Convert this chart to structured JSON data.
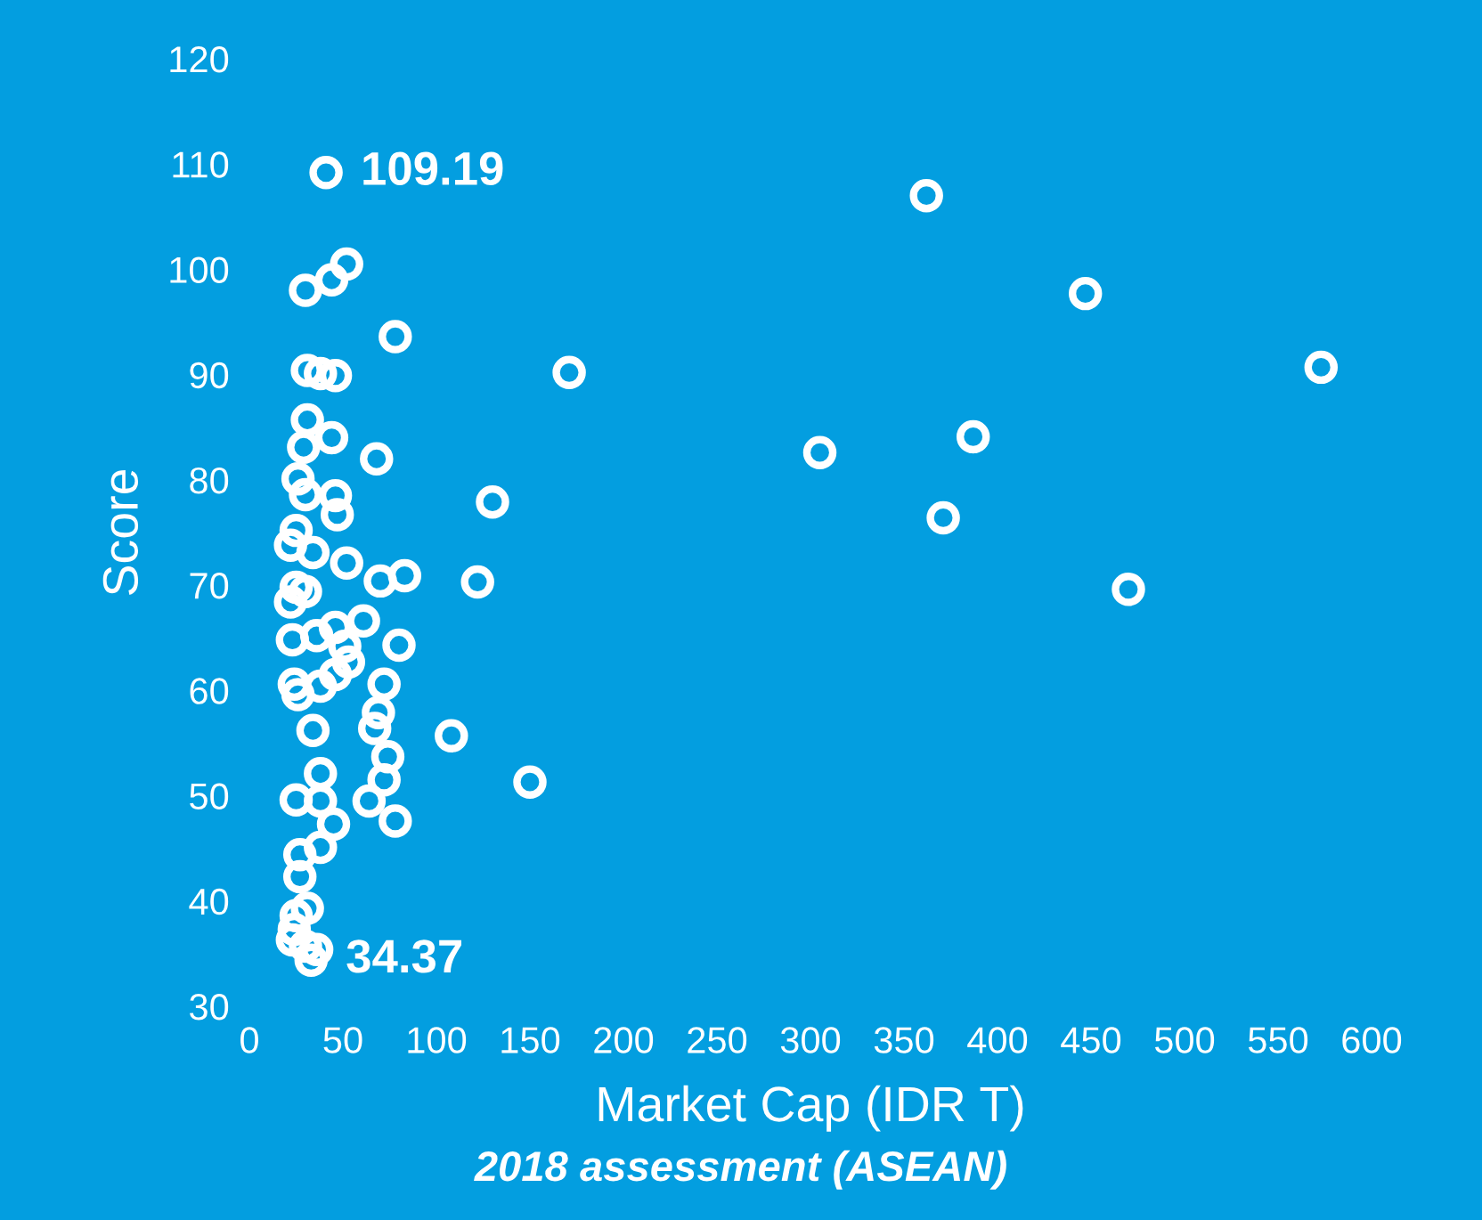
{
  "chart_data": {
    "type": "scatter",
    "xlabel": "Market Cap (IDR T)",
    "ylabel": "Score",
    "annotations": [
      "2018 assessment (ASEAN)"
    ],
    "xlim": [
      0,
      600
    ],
    "xticks": [
      0,
      50,
      100,
      150,
      200,
      250,
      300,
      350,
      400,
      450,
      500,
      550,
      600
    ],
    "ylim": [
      30,
      120
    ],
    "yticks": [
      30,
      40,
      50,
      60,
      70,
      80,
      90,
      100,
      110,
      120
    ],
    "grid": false,
    "marker": "circle",
    "series": [
      {
        "color": "#ffffff",
        "x": [
          362,
          447,
          573,
          171,
          387,
          305,
          371,
          130,
          470,
          122,
          150,
          108,
          41,
          52,
          44,
          30,
          78,
          31,
          38,
          46,
          31,
          44,
          29,
          68,
          26,
          30,
          46,
          47,
          25,
          22,
          34,
          52,
          70,
          83,
          25,
          22,
          30,
          46,
          61,
          23,
          36,
          51,
          80,
          53,
          46,
          24,
          38,
          72,
          26,
          69,
          67,
          34,
          74,
          38,
          72,
          25,
          38,
          64,
          78,
          45,
          38,
          27,
          27,
          31,
          25,
          24,
          23,
          30,
          36,
          33
        ],
        "values": [
          107.0,
          97.7,
          90.7,
          90.2,
          84.1,
          82.6,
          76.4,
          77.9,
          69.6,
          70.3,
          51.3,
          55.7,
          109.19,
          100.5,
          99.0,
          98.0,
          93.6,
          90.4,
          90.1,
          89.9,
          85.7,
          84.0,
          83.1,
          82.0,
          80.1,
          78.6,
          78.5,
          76.7,
          75.2,
          73.8,
          73.1,
          72.1,
          70.4,
          70.9,
          69.8,
          68.4,
          69.4,
          66.0,
          66.6,
          64.8,
          65.2,
          64.2,
          64.3,
          62.7,
          61.5,
          60.6,
          60.4,
          60.6,
          59.6,
          57.9,
          56.4,
          56.2,
          53.7,
          52.1,
          51.5,
          49.6,
          49.5,
          49.5,
          47.6,
          47.3,
          45.1,
          44.4,
          42.3,
          39.3,
          38.6,
          37.3,
          36.3,
          35.7,
          35.4,
          34.37
        ],
        "value_labels": [
          null,
          null,
          null,
          null,
          null,
          null,
          null,
          null,
          null,
          null,
          null,
          null,
          "109.19",
          null,
          null,
          null,
          null,
          null,
          null,
          null,
          null,
          null,
          null,
          null,
          null,
          null,
          null,
          null,
          null,
          null,
          null,
          null,
          null,
          null,
          null,
          null,
          null,
          null,
          null,
          null,
          null,
          null,
          null,
          null,
          null,
          null,
          null,
          null,
          null,
          null,
          null,
          null,
          null,
          null,
          null,
          null,
          null,
          null,
          null,
          null,
          null,
          null,
          null,
          null,
          null,
          null,
          null,
          null,
          null,
          "34.37"
        ]
      }
    ]
  }
}
